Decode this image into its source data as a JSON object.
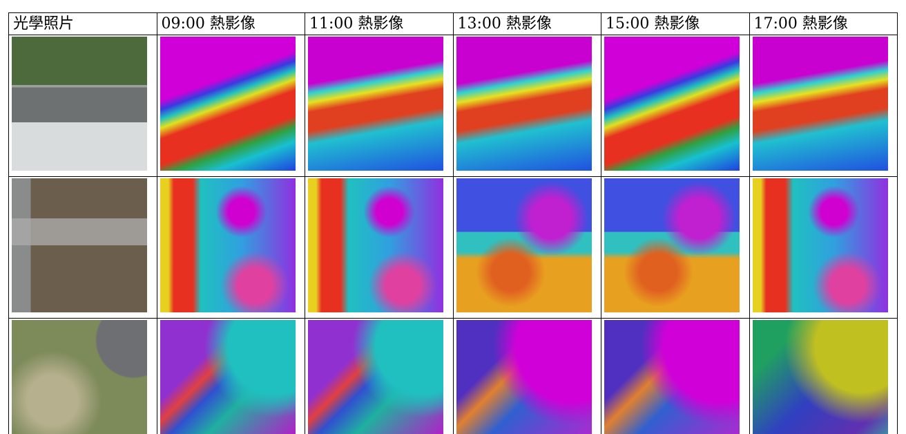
{
  "table": {
    "header": [
      "光學照片",
      "09:00 熱影像",
      "11:00 熱影像",
      "13:00 熱影像",
      "15:00 熱影像",
      "17:00 熱影像"
    ]
  }
}
